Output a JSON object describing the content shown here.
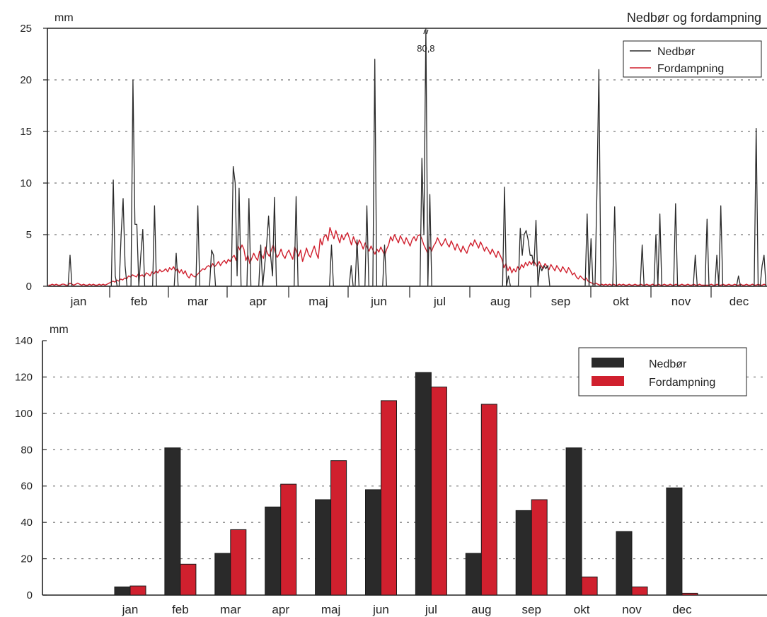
{
  "colors": {
    "nedbor": "#2a2a2a",
    "fordampning": "#d0202e",
    "axis": "#222222",
    "grid": "#555555"
  },
  "chart_data": [
    {
      "type": "line",
      "title": "Nedbør og fordampning",
      "ylabel": "mm",
      "ylim": [
        0,
        25
      ],
      "yticks": [
        0,
        5,
        10,
        15,
        20,
        25
      ],
      "grid": "horizontal dashed",
      "legend_position": "top-right",
      "categories": [
        "jan",
        "feb",
        "mar",
        "apr",
        "maj",
        "jun",
        "jul",
        "aug",
        "sep",
        "okt",
        "nov",
        "dec"
      ],
      "annotation": {
        "label": "80,8",
        "month": "jul",
        "value": 80.8
      },
      "series": [
        {
          "name": "Nedbør",
          "values_per_day_approx": [
            0,
            0,
            0,
            0,
            0,
            0,
            0,
            0,
            0,
            0,
            0,
            3,
            0,
            0,
            0,
            0,
            0,
            0,
            0,
            0,
            0,
            0,
            0,
            0,
            0,
            0,
            0,
            0,
            0,
            0,
            0,
            0,
            0,
            10.3,
            1,
            0,
            0,
            5,
            8.5,
            2,
            0,
            0,
            0,
            20,
            6,
            6,
            0,
            3,
            5.5,
            0,
            0,
            0,
            0,
            0,
            7.8,
            0,
            0,
            0,
            0,
            0,
            0,
            0,
            0,
            0,
            0,
            3.2,
            0,
            0,
            0,
            0,
            0,
            0,
            0,
            0,
            0,
            0,
            7.8,
            0,
            0,
            0,
            0,
            0,
            0,
            3.5,
            3,
            0,
            0,
            0,
            0,
            0,
            0,
            0,
            0,
            0,
            11.6,
            10,
            1,
            9.5,
            0,
            0,
            0,
            0,
            8.5,
            0,
            0,
            0,
            0,
            0,
            4,
            0,
            2,
            4,
            6.8,
            3,
            1,
            8.6,
            0,
            0,
            0,
            0,
            0,
            0,
            0,
            0,
            0,
            0,
            8.7,
            0,
            0,
            0,
            0,
            0,
            0,
            0,
            0,
            0,
            0,
            0,
            0,
            0,
            0,
            0,
            0,
            0,
            4,
            0,
            0,
            0,
            0,
            0,
            0,
            0,
            0,
            0,
            2,
            0,
            0,
            4.5,
            0,
            0,
            0,
            0,
            7.8,
            0,
            0,
            0,
            22,
            0,
            0,
            0,
            0,
            4,
            0,
            0,
            0,
            0,
            0,
            0,
            0,
            0,
            0,
            0,
            0,
            0,
            0,
            0,
            0,
            0,
            0,
            0,
            12.4,
            5,
            80.8,
            0,
            8.9,
            0,
            0,
            0,
            0,
            0,
            0,
            0,
            0,
            0,
            0,
            0,
            0,
            0,
            0,
            0,
            0,
            0,
            0,
            0,
            0,
            0,
            0,
            0,
            0,
            0,
            0,
            0,
            0,
            0,
            0,
            0,
            0,
            0,
            0,
            0,
            0,
            0,
            9.6,
            0,
            1,
            0,
            0,
            0,
            0,
            0,
            5.6,
            3,
            5,
            5.4,
            4.5,
            3,
            3,
            2,
            6.4,
            0,
            2,
            1.5,
            2,
            1.7,
            2,
            0,
            0,
            0,
            0,
            0,
            0,
            0,
            0,
            0,
            0,
            0,
            0,
            0,
            0,
            0,
            0,
            0,
            0,
            0,
            7,
            0,
            4.6,
            0,
            0,
            9,
            21,
            0,
            0,
            0,
            0,
            0,
            0,
            0,
            7.7,
            0,
            0,
            0,
            0,
            0,
            0,
            0,
            0,
            0,
            0,
            0,
            0,
            0,
            4,
            0,
            0,
            0,
            0,
            0,
            0,
            5,
            0,
            7,
            0,
            0,
            0,
            0,
            0,
            0,
            0,
            8,
            0,
            0,
            0,
            0,
            0,
            0,
            0,
            0,
            0,
            3,
            0,
            0,
            0,
            0,
            0,
            6.5,
            0,
            0,
            0,
            0,
            3,
            0,
            7.8,
            0,
            0,
            0,
            0,
            0,
            0,
            0,
            0,
            1,
            0,
            0,
            0,
            0,
            0,
            0,
            0,
            0,
            15.3,
            0,
            0,
            2,
            3,
            0
          ]
        },
        {
          "name": "Fordampning",
          "values_per_day_approx": [
            0.1,
            0.1,
            0.2,
            0.1,
            0.2,
            0.1,
            0.1,
            0.2,
            0.2,
            0.1,
            0.1,
            0.3,
            0.2,
            0.1,
            0.2,
            0.3,
            0.2,
            0.1,
            0.2,
            0.1,
            0.1,
            0.2,
            0.1,
            0.2,
            0.1,
            0.1,
            0.2,
            0.1,
            0.2,
            0.1,
            0.2,
            0.3,
            0.4,
            0.5,
            0.4,
            0.6,
            0.5,
            0.7,
            0.6,
            0.8,
            0.7,
            1,
            0.9,
            1.1,
            1,
            0.9,
            1.2,
            1,
            1.1,
            0.9,
            1.3,
            1.2,
            1,
            1.4,
            1.2,
            1.5,
            1.3,
            1.6,
            1.4,
            1.5,
            1.7,
            1.4,
            1.8,
            1.6,
            1.9,
            1.5,
            1.7,
            1.3,
            1.6,
            1.2,
            1.5,
            1,
            0.8,
            1.2,
            1,
            0.9,
            1.1,
            1.3,
            1.5,
            1.7,
            1.6,
            1.9,
            2,
            1.8,
            2.2,
            1.9,
            2.1,
            2.4,
            2,
            2.3,
            2.5,
            2.2,
            2.6,
            2.4,
            2.8,
            3,
            2.5,
            3.9,
            3.5,
            4,
            3.6,
            2.5,
            3,
            2.2,
            2.7,
            3.2,
            2.8,
            2.5,
            3.4,
            3,
            2.7,
            3.8,
            3.2,
            2.9,
            3.5,
            4,
            3.3,
            2.8,
            3.1,
            3.6,
            3,
            2.7,
            3.2,
            3.5,
            3,
            2.6,
            3.8,
            3.3,
            2.9,
            3.5,
            2.4,
            3,
            3.7,
            3.1,
            2.8,
            3.4,
            3.9,
            3.2,
            2.7,
            4.6,
            4,
            4.8,
            5,
            4.4,
            5.7,
            5.1,
            4.6,
            5.4,
            4.8,
            4.2,
            5,
            4.5,
            4.9,
            5.2,
            4.6,
            4,
            4.8,
            4.3,
            3.9,
            4.5,
            4.1,
            3.6,
            4.2,
            3.8,
            3.4,
            3.9,
            3.5,
            3.1,
            3.6,
            3.3,
            3.8,
            3.4,
            3,
            3.6,
            4,
            4.8,
            4.4,
            5,
            4.6,
            4.2,
            4.9,
            4.5,
            4.1,
            4.7,
            4.3,
            3.9,
            4.5,
            4.8,
            4.4,
            4.9,
            5,
            4.6,
            4,
            3.6,
            3.2,
            3.8,
            3.4,
            3.9,
            4.2,
            4.7,
            4.3,
            3.9,
            4.2,
            4.6,
            4.1,
            3.8,
            4.4,
            4,
            3.5,
            4.1,
            3.7,
            3.3,
            3.9,
            3.5,
            3.2,
            3.8,
            4.2,
            3.9,
            4.5,
            4.1,
            3.7,
            4.3,
            3.9,
            3.4,
            3.8,
            3.5,
            3.1,
            3.6,
            3.2,
            2.8,
            3.4,
            3,
            2.6,
            1.8,
            2.2,
            1.5,
            1.9,
            1.3,
            1.7,
            1.4,
            1.9,
            1.6,
            2.1,
            1.8,
            2.3,
            2,
            2.4,
            2.1,
            2.5,
            2.2,
            1.9,
            2.4,
            2,
            1.7,
            2.2,
            1.9,
            1.6,
            2.1,
            1.8,
            1.5,
            2,
            1.7,
            1.4,
            1.9,
            1.6,
            1.3,
            1.8,
            1.5,
            1.1,
            1.3,
            0.9,
            0.7,
            1,
            0.8,
            0.6,
            0.8,
            0.5,
            0.4,
            0.3,
            0.2,
            0.3,
            0.2,
            0.1,
            0.2,
            0.1,
            0.2,
            0.1,
            0.2,
            0.1,
            0.2,
            0.1,
            0.1,
            0.2,
            0.1,
            0.2,
            0.1,
            0.1,
            0.2,
            0.1,
            0.1,
            0.2,
            0.1,
            0.1,
            0.2,
            0.1,
            0.1,
            0.2,
            0.1,
            0.1,
            0.2,
            0.1,
            0.1,
            0.2,
            0.1,
            0.1,
            0.2,
            0.1,
            0.1,
            0.2,
            0.1,
            0.1,
            0.2,
            0.1,
            0.1,
            0.2,
            0.1,
            0.1,
            0.2,
            0.1,
            0.1,
            0.2,
            0.1,
            0.1,
            0.2,
            0.1,
            0.1,
            0.1,
            0.1,
            0.1,
            0.2,
            0.1,
            0.1,
            0.2,
            0.1,
            0.1,
            0.2,
            0.1,
            0.1,
            0.2,
            0.1,
            0.1,
            0.2,
            0.1,
            0.1,
            0.2,
            0.1,
            0.1,
            0.2,
            0.1,
            0.1,
            0.2,
            0.1,
            0.1,
            0.2,
            0.1,
            0.1,
            0.2,
            0.1
          ]
        }
      ]
    },
    {
      "type": "bar",
      "ylabel": "mm",
      "ylim": [
        0,
        140
      ],
      "yticks": [
        0,
        20,
        40,
        60,
        80,
        100,
        120,
        140
      ],
      "grid": "horizontal dashed",
      "legend_position": "top-right",
      "categories": [
        "jan",
        "feb",
        "mar",
        "apr",
        "maj",
        "jun",
        "jul",
        "aug",
        "sep",
        "okt",
        "nov",
        "dec"
      ],
      "series": [
        {
          "name": "Nedbør",
          "values": [
            4.5,
            81,
            23,
            48.5,
            52.5,
            58,
            122.5,
            23,
            46.5,
            81,
            35,
            59
          ]
        },
        {
          "name": "Fordampning",
          "values": [
            5,
            17,
            36,
            61,
            74,
            107,
            114.5,
            105,
            52.5,
            10,
            4.5,
            1
          ]
        }
      ]
    }
  ]
}
